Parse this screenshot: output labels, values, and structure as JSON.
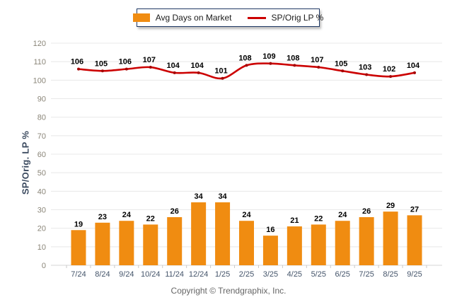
{
  "footer": {
    "copyright": "Copyright © Trendgraphix, Inc."
  },
  "colors": {
    "bar": "#F08C11",
    "line": "#CC0000",
    "line_marker": "#A50000",
    "grid": "#E8E8E8",
    "axis": "#D4D4D4",
    "tick": "#C9C9C9",
    "legend_border": "#1F3864",
    "y_tick_text": "#8A8578",
    "x_tick_text": "#44546A",
    "y_title_text": "#3B4A5F",
    "data_label_text": "#000000"
  },
  "chart_data": {
    "type": "bar+line",
    "title": "",
    "xlabel": "",
    "ylabel": "SP/Orig. LP %",
    "ylim": [
      0,
      120
    ],
    "ytick_step": 10,
    "yticks": [
      0,
      10,
      20,
      30,
      40,
      50,
      60,
      70,
      80,
      90,
      100,
      110,
      120
    ],
    "grid": "horizontal",
    "legend_position": "top-center",
    "categories": [
      "7/24",
      "8/24",
      "9/24",
      "10/24",
      "11/24",
      "12/24",
      "1/25",
      "2/25",
      "3/25",
      "4/25",
      "5/25",
      "6/25",
      "7/25",
      "8/25",
      "9/25"
    ],
    "series": [
      {
        "name": "Avg Days on Market",
        "type": "bar",
        "color": "#F08C11",
        "values": [
          19,
          23,
          24,
          22,
          26,
          34,
          34,
          24,
          16,
          21,
          22,
          24,
          26,
          29,
          27
        ]
      },
      {
        "name": "SP/Orig LP %",
        "type": "line",
        "color": "#CC0000",
        "values": [
          106,
          105,
          106,
          107,
          104,
          104,
          101,
          108,
          109,
          108,
          107,
          105,
          103,
          102,
          104
        ]
      }
    ]
  }
}
